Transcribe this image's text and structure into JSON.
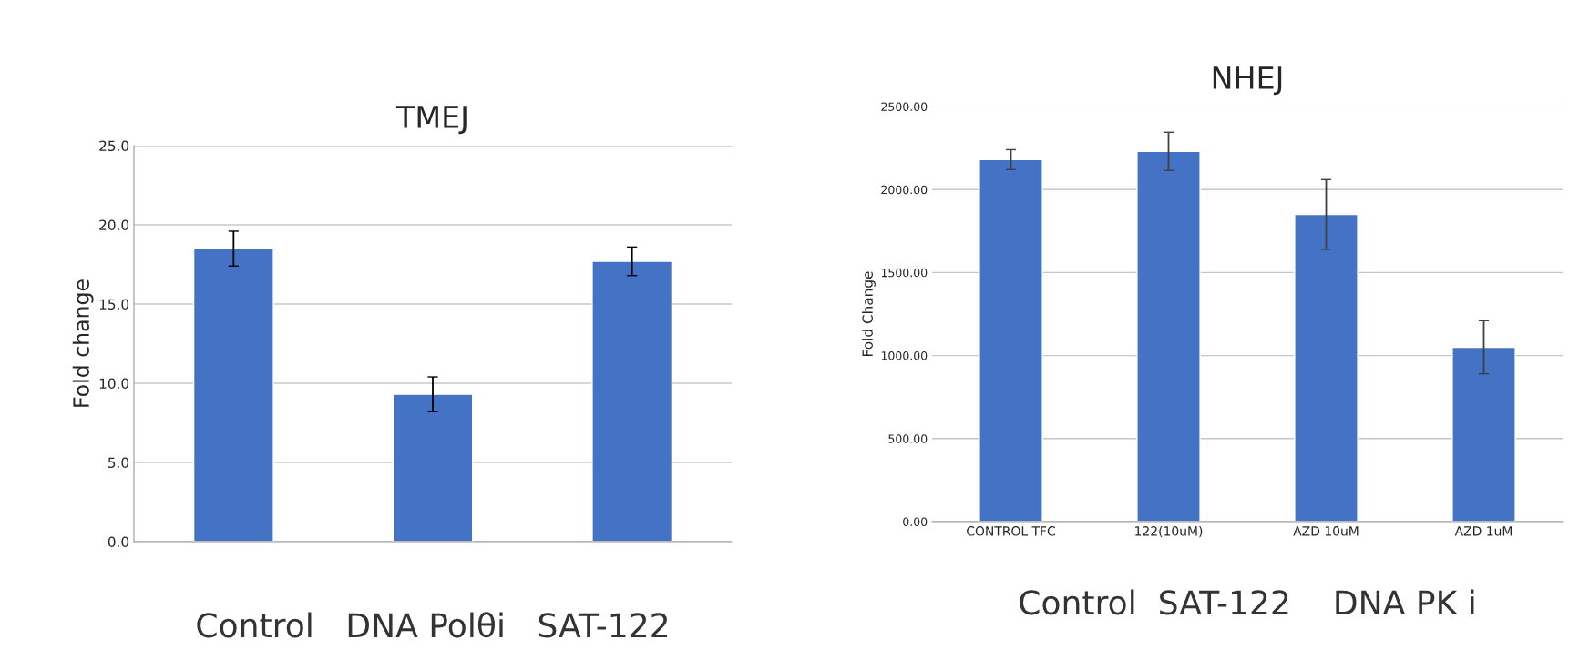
{
  "chart_data": [
    {
      "type": "bar",
      "title": "TMEJ",
      "ylabel": "Fold change",
      "categories": [
        null,
        null,
        null
      ],
      "series": [
        {
          "color": "#4472c4",
          "values": [
            18.5,
            9.3,
            17.7
          ],
          "errors": [
            1.1,
            1.1,
            0.9
          ]
        }
      ],
      "ylim": [
        0,
        25
      ],
      "yticks": [
        {
          "value": 0,
          "label": "0.0"
        },
        {
          "value": 5,
          "label": "5.0"
        },
        {
          "value": 10,
          "label": "10.0"
        },
        {
          "value": 15,
          "label": "15.0"
        },
        {
          "value": 20,
          "label": "20.0"
        },
        {
          "value": 25,
          "label": "25.0"
        }
      ],
      "grid": "y",
      "annotations": [
        "Control   DNA Polθi   SAT-122"
      ]
    },
    {
      "type": "bar",
      "title": "NHEJ",
      "ylabel": "Fold Change",
      "categories": [
        "CONTROL TFC",
        "122(10uM)",
        "AZD 10uM",
        "AZD 1uM"
      ],
      "series": [
        {
          "color": "#4472c4",
          "values": [
            2180,
            2230,
            1850,
            1050
          ],
          "errors": [
            60,
            115,
            210,
            160
          ]
        }
      ],
      "ylim": [
        0,
        2500
      ],
      "yticks": [
        {
          "value": 0,
          "label": "0.00"
        },
        {
          "value": 500,
          "label": "500.00"
        },
        {
          "value": 1000,
          "label": "1000.00"
        },
        {
          "value": 1500,
          "label": "1500.00"
        },
        {
          "value": 2000,
          "label": "2000.00"
        },
        {
          "value": 2500,
          "label": "2500.00"
        }
      ],
      "grid": "y",
      "annotations": [
        "Control  SAT-122    DNA PK i"
      ]
    }
  ]
}
